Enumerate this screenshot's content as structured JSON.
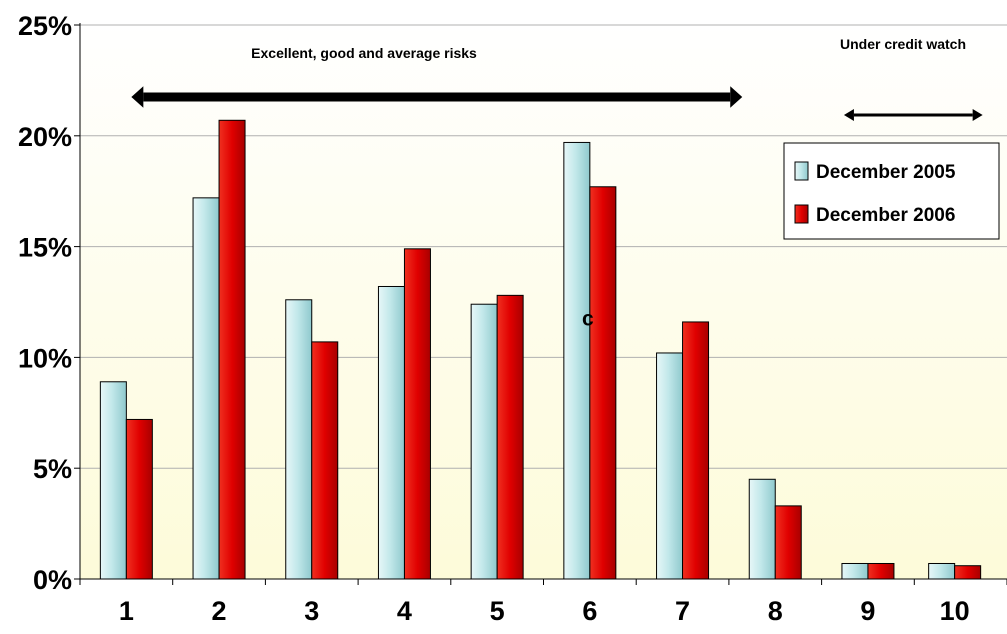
{
  "chart_data": {
    "type": "bar",
    "categories": [
      "1",
      "2",
      "3",
      "4",
      "5",
      "6",
      "7",
      "8",
      "9",
      "10"
    ],
    "series": [
      {
        "name": "December 2005",
        "values": [
          8.9,
          17.2,
          12.6,
          13.2,
          12.4,
          19.7,
          10.2,
          4.5,
          0.7,
          0.7
        ],
        "color": "#b9e3e6"
      },
      {
        "name": "December 2006",
        "values": [
          7.2,
          20.7,
          10.7,
          14.9,
          12.8,
          17.7,
          11.6,
          3.3,
          0.7,
          0.6
        ],
        "color": "#e00000"
      }
    ],
    "ylim": [
      0,
      25
    ],
    "yticks": [
      "0%",
      "5%",
      "10%",
      "15%",
      "20%",
      "25%"
    ],
    "ytick_values": [
      0,
      5,
      10,
      15,
      20,
      25
    ],
    "grid": true,
    "legend_position": "right",
    "annotations": {
      "range1_label": "Excellent, good and average risks",
      "range2_label": "Under credit watch",
      "bar_label": "c"
    },
    "range1_span": [
      "1",
      "8"
    ],
    "range2_span": [
      "9",
      "10"
    ],
    "bar_label_at": {
      "category": "6",
      "value": 11.8
    },
    "background_gradient": [
      "#ffffff",
      "#fdfbd9"
    ]
  }
}
